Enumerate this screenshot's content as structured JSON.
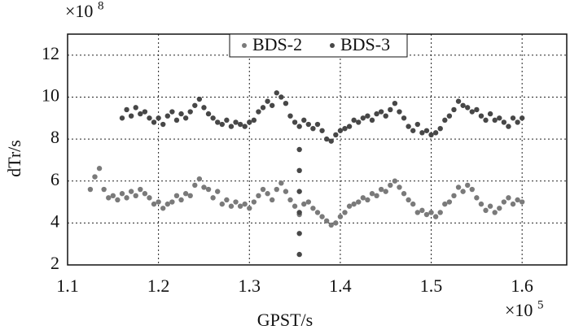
{
  "chart_data": {
    "type": "scatter",
    "xlabel": "GPST/s",
    "ylabel": "dTr/s",
    "x_multiplier": {
      "base": "×10",
      "exponent": "5"
    },
    "y_multiplier": {
      "base": "×10",
      "exponent": "8"
    },
    "xlim": [
      1.1,
      1.65
    ],
    "ylim": [
      2,
      13
    ],
    "xticks": [
      1.1,
      1.2,
      1.3,
      1.4,
      1.5,
      1.6
    ],
    "yticks": [
      2,
      4,
      6,
      8,
      10,
      12
    ],
    "grid": true,
    "legend": "top",
    "series": [
      {
        "name": "BDS-2",
        "color": "#7a7a7a",
        "x": [
          1.125,
          1.13,
          1.135,
          1.14,
          1.145,
          1.15,
          1.155,
          1.16,
          1.165,
          1.17,
          1.175,
          1.18,
          1.185,
          1.19,
          1.195,
          1.2,
          1.205,
          1.21,
          1.215,
          1.22,
          1.225,
          1.23,
          1.235,
          1.24,
          1.245,
          1.25,
          1.255,
          1.26,
          1.265,
          1.27,
          1.275,
          1.28,
          1.285,
          1.29,
          1.295,
          1.3,
          1.305,
          1.31,
          1.315,
          1.32,
          1.325,
          1.33,
          1.335,
          1.34,
          1.345,
          1.35,
          1.355,
          1.36,
          1.365,
          1.37,
          1.375,
          1.38,
          1.385,
          1.39,
          1.395,
          1.4,
          1.405,
          1.41,
          1.415,
          1.42,
          1.425,
          1.43,
          1.435,
          1.44,
          1.445,
          1.45,
          1.455,
          1.46,
          1.465,
          1.47,
          1.475,
          1.48,
          1.485,
          1.49,
          1.495,
          1.5,
          1.505,
          1.51,
          1.515,
          1.52,
          1.525,
          1.53,
          1.535,
          1.54,
          1.545,
          1.55,
          1.555,
          1.56,
          1.565,
          1.57,
          1.575,
          1.58,
          1.585,
          1.59,
          1.595,
          1.6
        ],
        "values": [
          5.6,
          6.2,
          6.6,
          5.6,
          5.2,
          5.3,
          5.1,
          5.4,
          5.2,
          5.5,
          5.3,
          5.6,
          5.4,
          5.2,
          4.9,
          5.0,
          4.7,
          4.9,
          5.0,
          5.3,
          5.1,
          5.4,
          5.3,
          5.8,
          6.1,
          5.7,
          5.6,
          5.2,
          5.5,
          4.9,
          5.1,
          4.8,
          5.0,
          4.8,
          4.9,
          4.7,
          5.0,
          5.3,
          5.6,
          5.4,
          5.1,
          5.6,
          5.9,
          5.5,
          5.1,
          4.8,
          4.4,
          4.9,
          5.0,
          4.7,
          4.5,
          4.3,
          4.1,
          3.9,
          4.0,
          4.3,
          4.5,
          4.8,
          4.9,
          5.0,
          5.2,
          5.1,
          5.4,
          5.3,
          5.6,
          5.5,
          5.8,
          6.0,
          5.7,
          5.4,
          5.1,
          4.9,
          4.5,
          4.6,
          4.4,
          4.5,
          4.3,
          4.5,
          4.9,
          5.0,
          5.3,
          5.7,
          5.5,
          5.8,
          5.6,
          5.2,
          4.9,
          4.6,
          4.8,
          4.5,
          4.7,
          5.0,
          5.2,
          4.9,
          5.1,
          5.0
        ]
      },
      {
        "name": "BDS-3",
        "color": "#474747",
        "x": [
          1.16,
          1.165,
          1.17,
          1.175,
          1.18,
          1.185,
          1.19,
          1.195,
          1.2,
          1.205,
          1.21,
          1.215,
          1.22,
          1.225,
          1.23,
          1.235,
          1.24,
          1.245,
          1.25,
          1.255,
          1.26,
          1.265,
          1.27,
          1.275,
          1.28,
          1.285,
          1.29,
          1.295,
          1.3,
          1.305,
          1.31,
          1.315,
          1.32,
          1.325,
          1.33,
          1.335,
          1.34,
          1.345,
          1.35,
          1.355,
          1.355,
          1.355,
          1.355,
          1.355,
          1.355,
          1.355,
          1.36,
          1.365,
          1.37,
          1.375,
          1.38,
          1.385,
          1.39,
          1.395,
          1.4,
          1.405,
          1.41,
          1.415,
          1.42,
          1.425,
          1.43,
          1.435,
          1.44,
          1.445,
          1.45,
          1.455,
          1.46,
          1.465,
          1.47,
          1.475,
          1.48,
          1.485,
          1.49,
          1.495,
          1.5,
          1.505,
          1.51,
          1.515,
          1.52,
          1.525,
          1.53,
          1.535,
          1.54,
          1.545,
          1.55,
          1.555,
          1.56,
          1.565,
          1.57,
          1.575,
          1.58,
          1.585,
          1.59,
          1.595,
          1.6
        ],
        "values": [
          9.0,
          9.4,
          9.1,
          9.5,
          9.2,
          9.3,
          9.0,
          8.8,
          9.0,
          8.7,
          9.1,
          9.3,
          8.9,
          9.2,
          9.0,
          9.3,
          9.6,
          9.9,
          9.5,
          9.2,
          9.0,
          8.8,
          8.7,
          8.9,
          8.6,
          8.8,
          8.7,
          8.6,
          8.8,
          8.9,
          9.3,
          9.5,
          9.8,
          9.6,
          10.2,
          10.0,
          9.7,
          9.1,
          8.8,
          8.6,
          7.5,
          6.5,
          5.5,
          4.5,
          3.5,
          2.5,
          8.9,
          8.7,
          8.5,
          8.7,
          8.4,
          8.0,
          7.9,
          8.2,
          8.4,
          8.5,
          8.6,
          8.9,
          8.8,
          9.0,
          9.1,
          8.9,
          9.2,
          9.3,
          9.1,
          9.4,
          9.7,
          9.3,
          9.0,
          8.6,
          8.4,
          8.7,
          8.3,
          8.4,
          8.2,
          8.3,
          8.5,
          8.9,
          9.1,
          9.4,
          9.8,
          9.6,
          9.5,
          9.3,
          9.4,
          9.1,
          8.9,
          9.2,
          8.9,
          9.0,
          8.8,
          8.6,
          9.0,
          8.8,
          9.0
        ]
      }
    ]
  }
}
